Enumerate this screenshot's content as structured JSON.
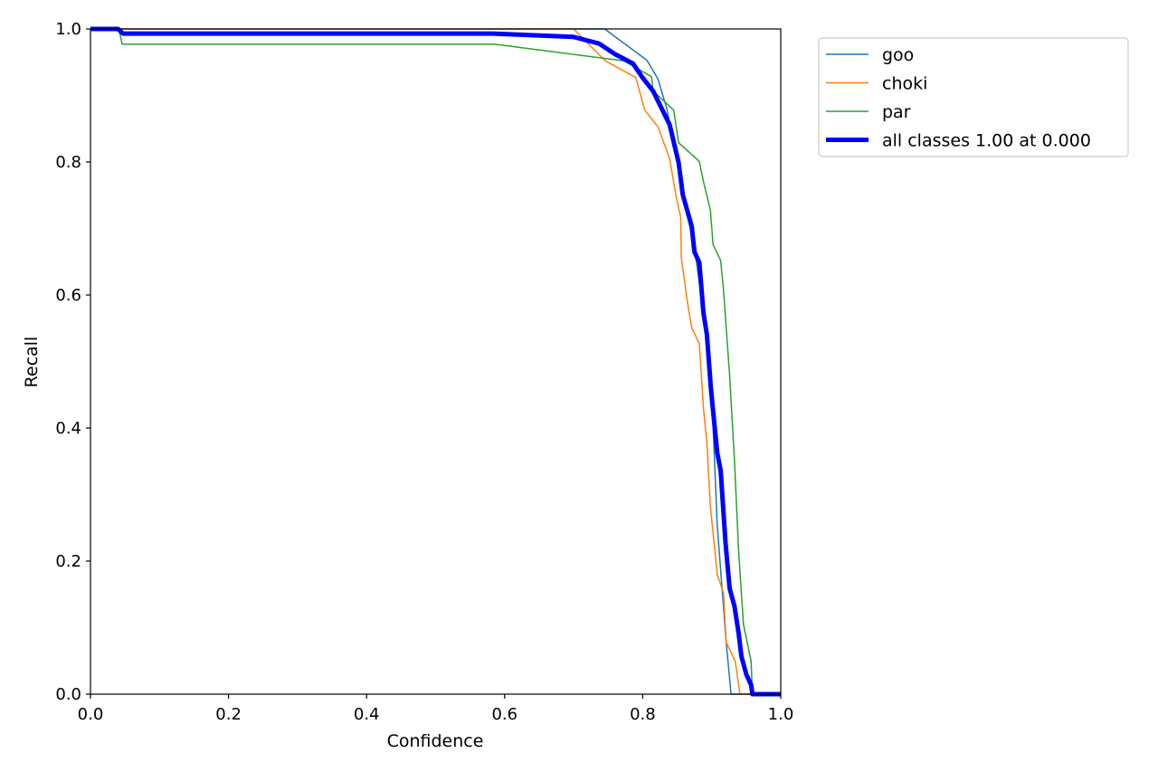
{
  "chart_data": {
    "type": "line",
    "title": "",
    "xlabel": "Confidence",
    "ylabel": "Recall",
    "xlim": [
      0,
      1
    ],
    "ylim": [
      0,
      1
    ],
    "xticks": [
      "0.0",
      "0.2",
      "0.4",
      "0.6",
      "0.8",
      "1.0"
    ],
    "yticks": [
      "0.0",
      "0.2",
      "0.4",
      "0.6",
      "0.8",
      "1.0"
    ],
    "grid": false,
    "legend_placement": "outside-top-right",
    "series": [
      {
        "name": "goo",
        "color": "#1f77b4",
        "width": "thin",
        "x": [
          0,
          0.745,
          0.806,
          0.822,
          0.835,
          0.858,
          0.878,
          0.898,
          0.908,
          0.921,
          0.928,
          1.0
        ],
        "y": [
          1,
          1,
          0.953,
          0.925,
          0.88,
          0.76,
          0.649,
          0.5,
          0.254,
          0.078,
          0,
          0
        ]
      },
      {
        "name": "choki",
        "color": "#ff7f0e",
        "width": "thin",
        "x": [
          0,
          0.7,
          0.746,
          0.79,
          0.803,
          0.822,
          0.839,
          0.848,
          0.855,
          0.856,
          0.865,
          0.871,
          0.882,
          0.888,
          0.893,
          0.898,
          0.908,
          0.917,
          0.921,
          0.934,
          0.941,
          1.0
        ],
        "y": [
          1,
          1,
          0.952,
          0.927,
          0.878,
          0.853,
          0.805,
          0.751,
          0.717,
          0.656,
          0.588,
          0.551,
          0.527,
          0.431,
          0.377,
          0.282,
          0.18,
          0.152,
          0.078,
          0.05,
          0,
          0
        ]
      },
      {
        "name": "par",
        "color": "#2ca02c",
        "width": "thin",
        "x": [
          0,
          0.041,
          0.046,
          0.586,
          0.773,
          0.813,
          0.815,
          0.845,
          0.852,
          0.882,
          0.888,
          0.898,
          0.902,
          0.913,
          0.917,
          0.926,
          0.933,
          0.939,
          0.946,
          0.957,
          0.959,
          1.0
        ],
        "y": [
          1,
          1,
          0.977,
          0.977,
          0.952,
          0.928,
          0.907,
          0.878,
          0.829,
          0.801,
          0.771,
          0.728,
          0.676,
          0.652,
          0.608,
          0.479,
          0.35,
          0.214,
          0.105,
          0.05,
          0,
          0
        ]
      },
      {
        "name": "all classes 1.00 at 0.000",
        "color": "#0000ff",
        "width": "thick",
        "x": [
          0,
          0.04,
          0.047,
          0.583,
          0.7,
          0.737,
          0.76,
          0.786,
          0.799,
          0.815,
          0.839,
          0.852,
          0.858,
          0.871,
          0.875,
          0.882,
          0.888,
          0.893,
          0.899,
          0.908,
          0.913,
          0.92,
          0.926,
          0.933,
          0.939,
          0.943,
          0.95,
          0.957,
          0.959,
          1.0
        ],
        "y": [
          1,
          1,
          0.993,
          0.993,
          0.988,
          0.978,
          0.962,
          0.948,
          0.928,
          0.907,
          0.856,
          0.799,
          0.751,
          0.703,
          0.665,
          0.649,
          0.574,
          0.54,
          0.458,
          0.363,
          0.336,
          0.227,
          0.159,
          0.132,
          0.091,
          0.057,
          0.03,
          0.014,
          0,
          0
        ]
      }
    ]
  }
}
